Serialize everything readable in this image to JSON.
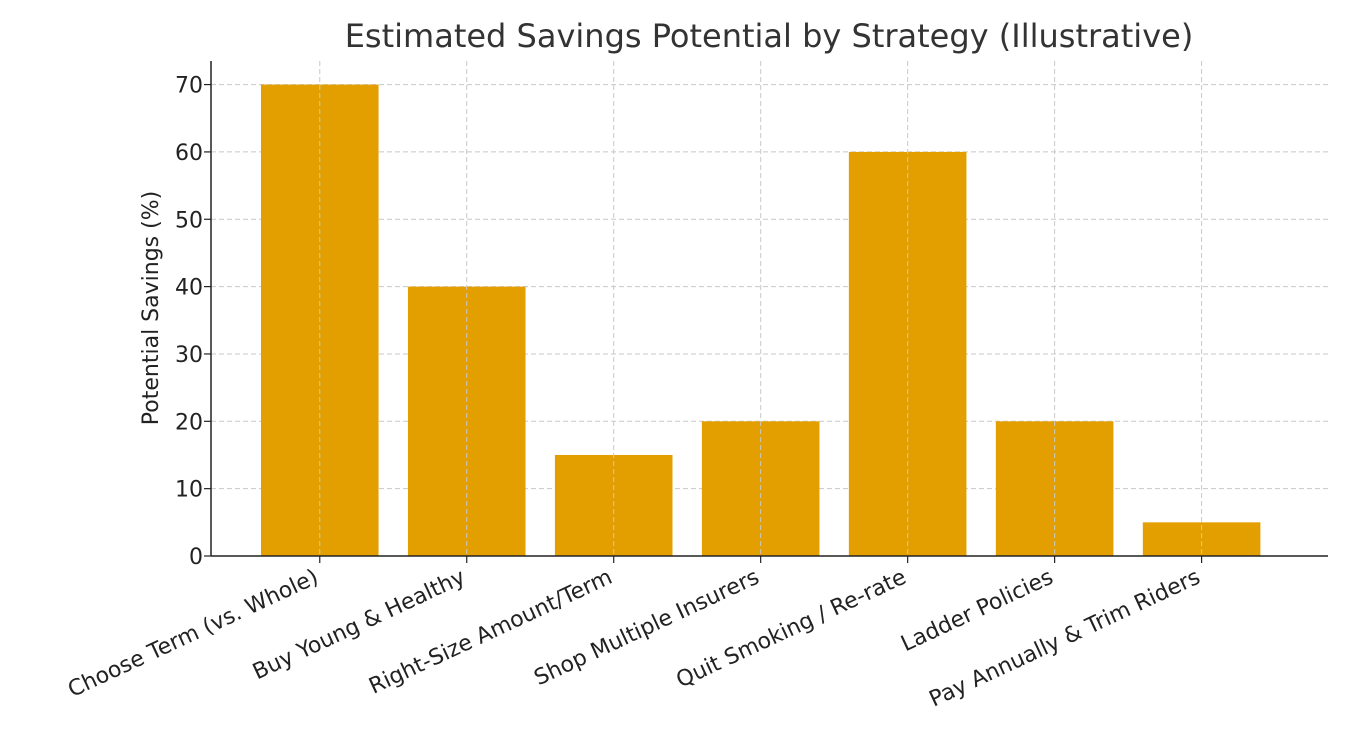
{
  "chart_data": {
    "type": "bar",
    "title": "Estimated Savings Potential by Strategy (Illustrative)",
    "xlabel": "",
    "ylabel": "Potential Savings (%)",
    "categories": [
      "Choose Term (vs. Whole)",
      "Buy Young & Healthy",
      "Right-Size Amount/Term",
      "Shop Multiple Insurers",
      "Quit Smoking / Re-rate",
      "Ladder Policies",
      "Pay Annually & Trim Riders"
    ],
    "values": [
      70,
      40,
      15,
      20,
      60,
      20,
      5
    ],
    "ylim": [
      0,
      73.5
    ],
    "yticks": [
      "0",
      "10",
      "20",
      "30",
      "40",
      "50",
      "60",
      "70"
    ],
    "grid": true,
    "bar_color": "#e39f00",
    "x_tick_rotation_deg": -25
  }
}
